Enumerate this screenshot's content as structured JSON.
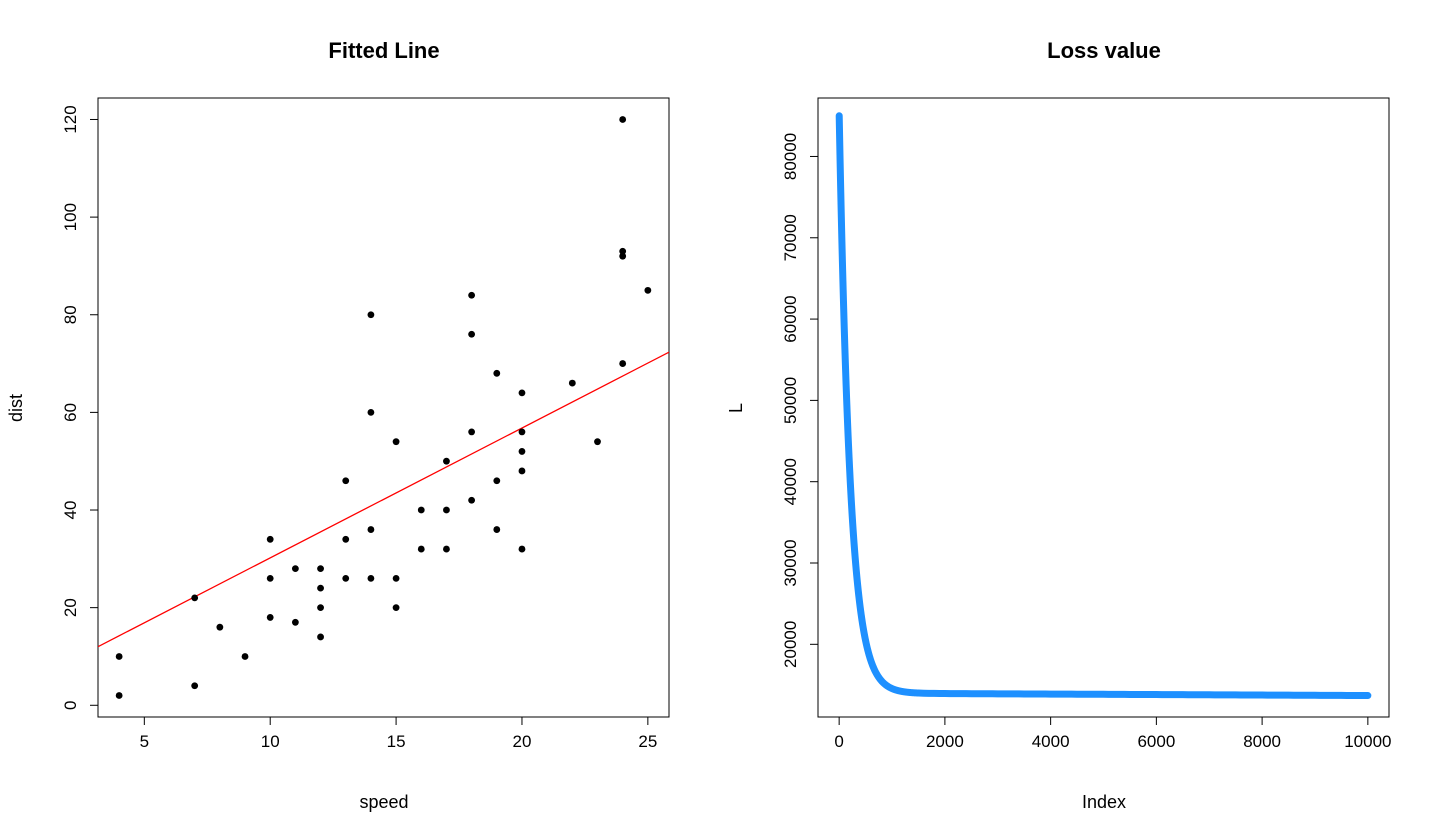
{
  "chart_data": [
    {
      "type": "scatter",
      "title": "Fitted Line",
      "xlabel": "speed",
      "ylabel": "dist",
      "xlim": [
        3.16,
        25.84
      ],
      "ylim": [
        -2.4,
        124.4
      ],
      "xticks": [
        5,
        10,
        15,
        20,
        25
      ],
      "yticks": [
        0,
        20,
        40,
        60,
        80,
        100,
        120
      ],
      "point_color": "#000000",
      "points": [
        [
          4,
          2
        ],
        [
          4,
          10
        ],
        [
          7,
          4
        ],
        [
          7,
          22
        ],
        [
          8,
          16
        ],
        [
          9,
          10
        ],
        [
          10,
          18
        ],
        [
          10,
          26
        ],
        [
          10,
          34
        ],
        [
          11,
          17
        ],
        [
          11,
          28
        ],
        [
          12,
          14
        ],
        [
          12,
          20
        ],
        [
          12,
          24
        ],
        [
          12,
          28
        ],
        [
          13,
          26
        ],
        [
          13,
          34
        ],
        [
          13,
          46
        ],
        [
          14,
          26
        ],
        [
          14,
          36
        ],
        [
          14,
          60
        ],
        [
          14,
          80
        ],
        [
          15,
          20
        ],
        [
          15,
          26
        ],
        [
          15,
          54
        ],
        [
          16,
          32
        ],
        [
          16,
          40
        ],
        [
          17,
          32
        ],
        [
          17,
          40
        ],
        [
          17,
          50
        ],
        [
          18,
          42
        ],
        [
          18,
          56
        ],
        [
          18,
          76
        ],
        [
          18,
          84
        ],
        [
          19,
          36
        ],
        [
          19,
          46
        ],
        [
          19,
          68
        ],
        [
          20,
          32
        ],
        [
          20,
          48
        ],
        [
          20,
          52
        ],
        [
          20,
          56
        ],
        [
          20,
          64
        ],
        [
          22,
          66
        ],
        [
          23,
          54
        ],
        [
          24,
          70
        ],
        [
          24,
          92
        ],
        [
          24,
          93
        ],
        [
          24,
          120
        ],
        [
          25,
          85
        ]
      ],
      "fitted_line": {
        "intercept": 3.6,
        "slope": 2.66,
        "color": "#ff0000"
      }
    },
    {
      "type": "line",
      "title": "Loss value",
      "xlabel": "Index",
      "ylabel": "L",
      "xlim": [
        -400,
        10400
      ],
      "ylim": [
        11060,
        87190
      ],
      "xticks": [
        0,
        2000,
        4000,
        6000,
        8000,
        10000
      ],
      "yticks": [
        20000,
        30000,
        40000,
        50000,
        60000,
        70000,
        80000
      ],
      "line_color": "#1e90ff",
      "curve": {
        "start_index": 1,
        "end_index": 10000,
        "initial": 85000,
        "plateau_start": 14000,
        "plateau_end": 13700,
        "decay_rate": 0.0048
      }
    }
  ]
}
